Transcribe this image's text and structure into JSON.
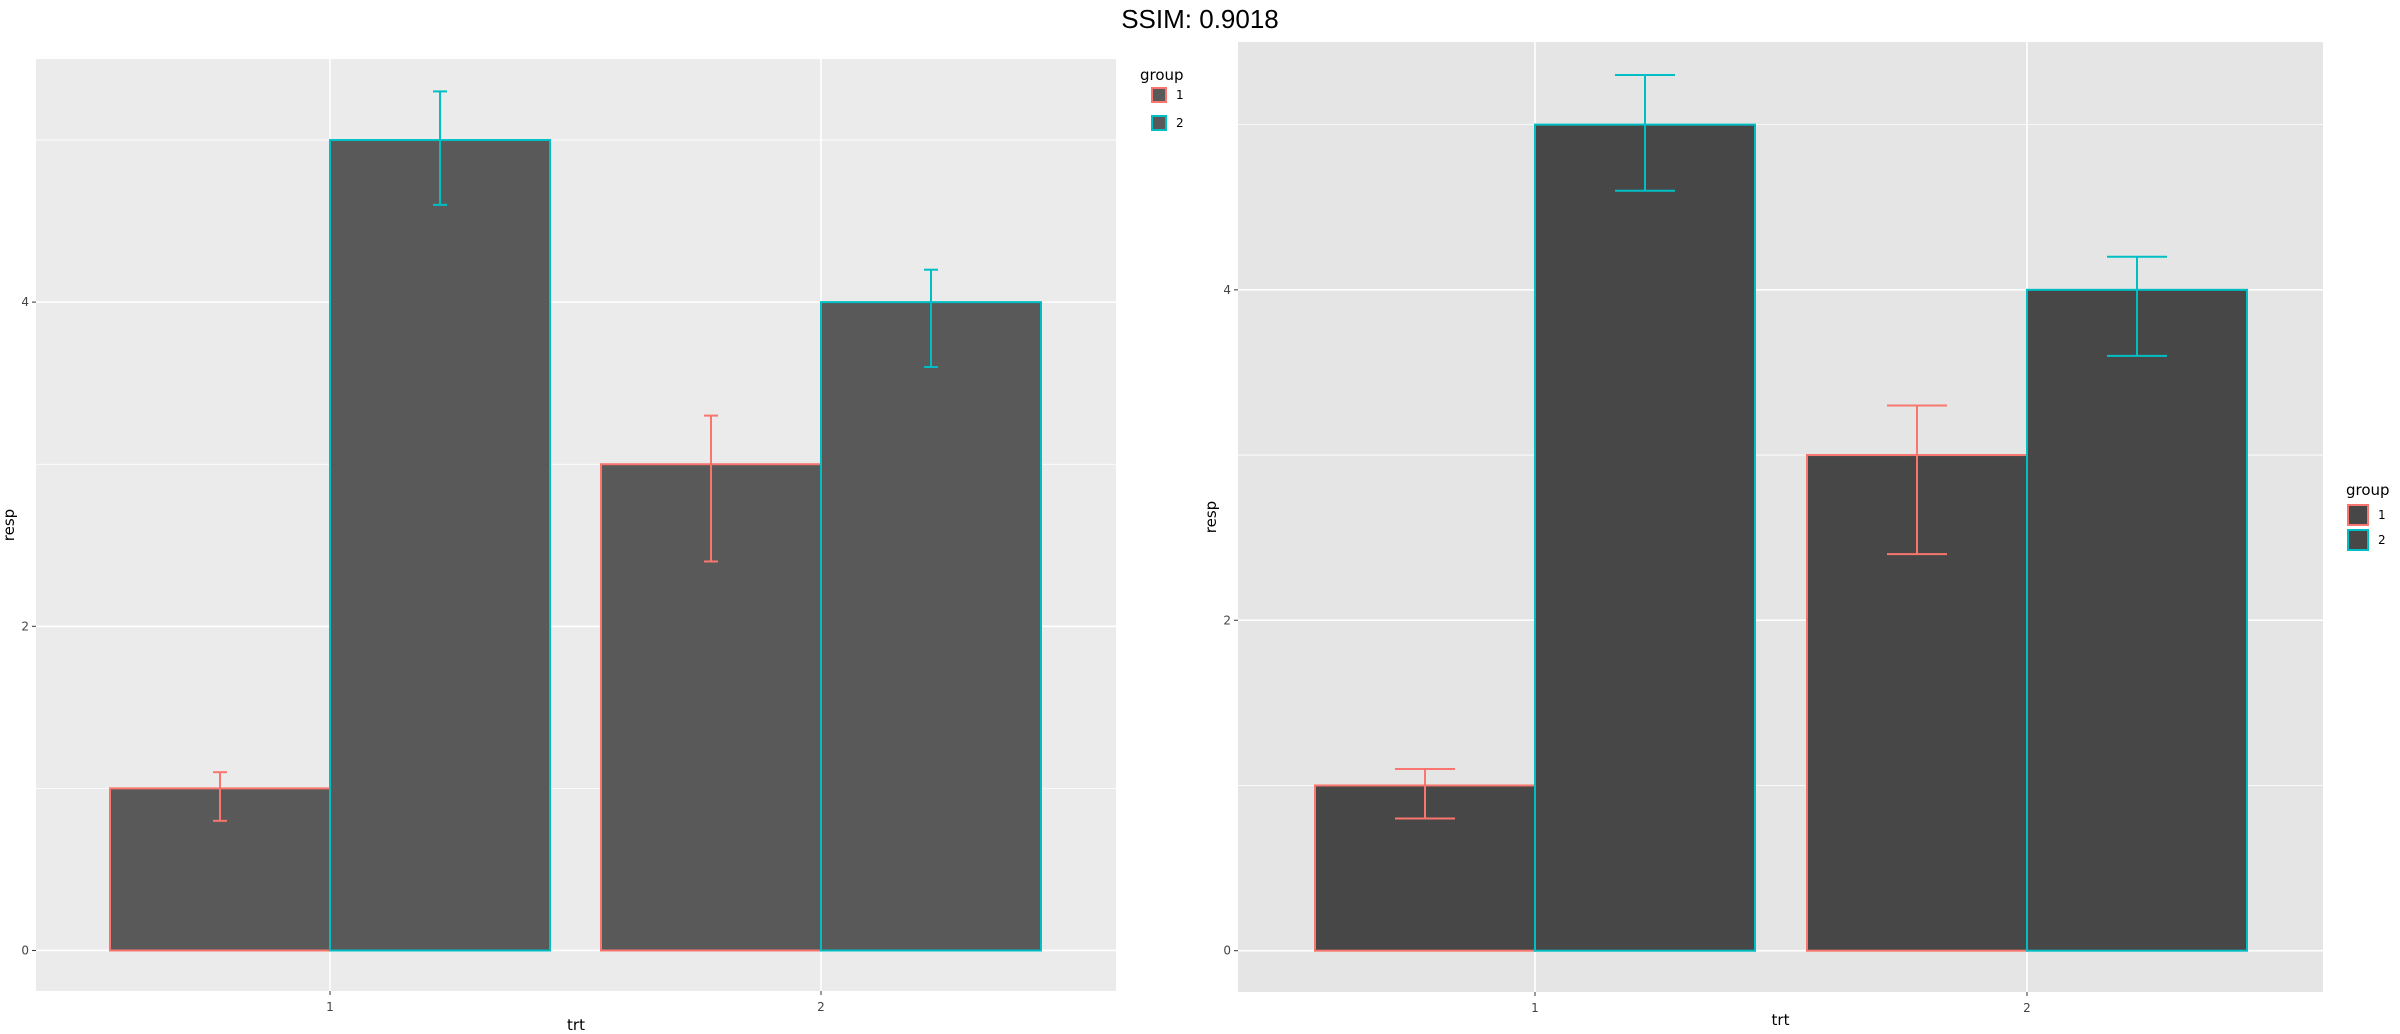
{
  "header": {
    "title": "SSIM: 0.9018"
  },
  "chart_data": [
    {
      "type": "bar",
      "panel": "left",
      "categories": [
        "1",
        "2"
      ],
      "series": [
        {
          "name": "1",
          "values": [
            1,
            3
          ],
          "errors_lower": [
            0.8,
            2.4
          ],
          "errors_upper": [
            1.1,
            3.3
          ]
        },
        {
          "name": "2",
          "values": [
            5,
            4
          ],
          "errors_lower": [
            4.6,
            3.6
          ],
          "errors_upper": [
            5.3,
            4.2
          ]
        }
      ],
      "colors": {
        "1": "#F8766D",
        "2": "#00BFC4"
      },
      "bar_fill": "#595959",
      "panel_background": "#EBEBEB",
      "grid_color": "#FFFFFF",
      "title": "",
      "xlabel": "trt",
      "ylabel": "resp",
      "yticks": [
        "0",
        "2",
        "4"
      ],
      "ylim": [
        -0.25,
        5.5
      ],
      "legend": {
        "title": "group",
        "entries": [
          "1",
          "2"
        ],
        "placement": "top-right"
      }
    },
    {
      "type": "bar",
      "panel": "right",
      "categories": [
        "1",
        "2"
      ],
      "series": [
        {
          "name": "1",
          "values": [
            1,
            3
          ],
          "errors_lower": [
            0.8,
            2.4
          ],
          "errors_upper": [
            1.1,
            3.3
          ]
        },
        {
          "name": "2",
          "values": [
            5,
            4
          ],
          "errors_lower": [
            4.6,
            3.6
          ],
          "errors_upper": [
            5.3,
            4.2
          ]
        }
      ],
      "colors": {
        "1": "#F8766D",
        "2": "#00BFC4"
      },
      "bar_fill": "#474747",
      "panel_background": "#E5E5E5",
      "grid_color": "#FFFFFF",
      "title": "",
      "xlabel": "trt",
      "ylabel": "resp",
      "yticks": [
        "0",
        "2",
        "4"
      ],
      "ylim": [
        -0.25,
        5.5
      ],
      "legend": {
        "title": "group",
        "entries": [
          "1",
          "2"
        ],
        "placement": "right"
      }
    }
  ]
}
